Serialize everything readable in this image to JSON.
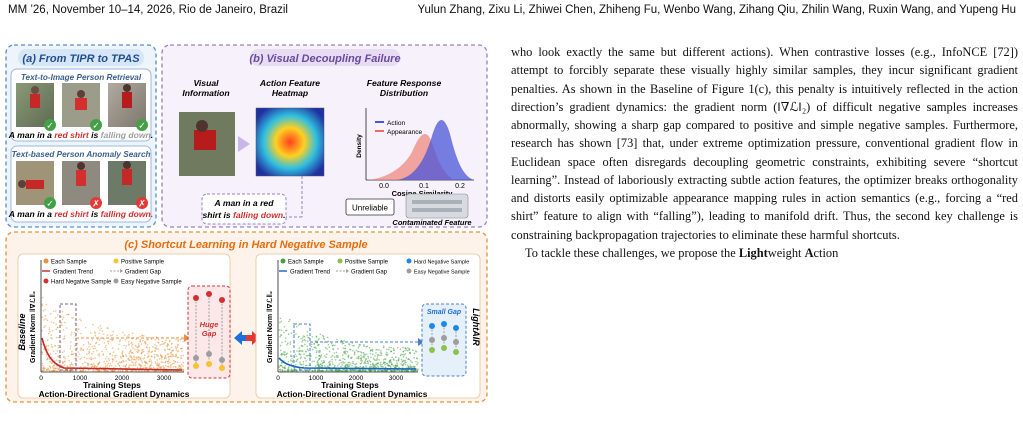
{
  "header": {
    "venue": "MM ’26, November 10–14, 2026, Rio de Janeiro, Brazil",
    "authors": "Yulun Zhang, Zixu Li, Zhiwei Chen, Zhiheng Fu, Wenbo Wang, Zihang Qiu, Zhilin Wang, Ruxin Wang, and Yupeng Hu"
  },
  "figure": {
    "panel_a": {
      "title": "(a) From TIPR to TPAS",
      "sub1": "Text-to-Image Person Retrieval",
      "caption1_pre": "A man in a ",
      "caption1_red": "red shirt",
      "caption1_mid": " is ",
      "caption1_gray": "falling down",
      "caption1_end": ".",
      "sub2": "Text-based Person Anomaly Search",
      "caption2_pre": "A man in a ",
      "caption2_red": "red shirt",
      "caption2_mid": " is ",
      "caption2_red2": "falling down.",
      "marks_row1": [
        "✓",
        "✓",
        "✓"
      ],
      "marks_row2": [
        "✓",
        "✗",
        "✗"
      ]
    },
    "panel_b": {
      "title": "(b) Visual Decoupling Failure",
      "col1_line1": "Visual",
      "col1_line2": "Information",
      "col2_line1": "Action Feature",
      "col2_line2": "Heatmap",
      "col3_line1": "Feature Response",
      "col3_line2": "Distribution",
      "legend_action": "Action",
      "legend_appearance": "Appearance",
      "ylabel": "Density",
      "xlabel": "Cosine Similarity",
      "xticks": [
        "0.0",
        "0.1",
        "0.2"
      ],
      "query_line1": "A man in a red",
      "query_line2_pre": "shirt is ",
      "query_line2_red": "falling down",
      "query_line2_end": ".",
      "unreliable": "Unreliable",
      "contaminated": "Contaminated Feature"
    },
    "panel_c": {
      "title": "(c) Shortcut Learning in Hard Negative Sample",
      "left": {
        "side_label": "Baseline",
        "ylabel": "Gradient Norm ‖∇ℒ‖₂",
        "xlabel": "Training Steps",
        "xticks": [
          "0",
          "1000",
          "2000",
          "3000"
        ],
        "subtitle": "Action-Directional Gradient Dynamics",
        "legend": [
          "Each Sample",
          "Positive Sample",
          "Gradient Trend",
          "Gradient Gap",
          "Hard Negative Sample",
          "Easy Negative Sample"
        ],
        "gap_label_1": "Huge",
        "gap_label_2": "Gap"
      },
      "right": {
        "side_label": "LightAIR",
        "ylabel": "Gradient Norm ‖∇ℒ‖₂",
        "xlabel": "Training Steps",
        "xticks": [
          "0",
          "1000",
          "2000",
          "3000"
        ],
        "subtitle": "Action-Directional Gradient Dynamics",
        "legend": [
          "Each Sample",
          "Positive Sample",
          "Hard Negative Sample",
          "Gradient Trend",
          "Gradient Gap",
          "Easy Negative Sample"
        ],
        "gap_label": "Small Gap"
      }
    },
    "colors": {
      "red": "#d32f2f",
      "green": "#43a047",
      "orange": "#ef6c00",
      "blue": "#1565c0",
      "purple": "#7b5ea7"
    }
  },
  "body": {
    "p1": "who look exactly the same but different actions). When contrastive losses (e.g., InfoNCE [72]) attempt to forcibly separate these visually highly similar samples, they incur significant gradient penalties. As shown in the Baseline of Figure 1(c), this penalty is intuitively reflected in the action direction’s gradient dynamics: the gradient norm (‖∇ℒ‖₂) of difficult negative samples increases abnormally, showing a sharp gap compared to positive and simple negative samples. Furthermore, research has shown [73] that, under extreme optimization pressure, conventional gradient flow in Euclidean space often disregards decoupling geometric constraints, exhibiting severe “shortcut learning”. Instead of laboriously extracting subtle action features, the optimizer breaks orthogonality and distorts easily optimizable appearance mapping rules in action semantics (e.g., forcing a “red shirt” feature to align with “falling”), leading to manifold drift. Thus, the second key challenge is constraining backpropagation trajectories to eliminate these harmful shortcuts.",
    "p2_pre": "To tackle these challenges, we propose the ",
    "p2_b1": "Light",
    "p2_m1": "weight ",
    "p2_b2": "A",
    "p2_m2": "ction"
  }
}
